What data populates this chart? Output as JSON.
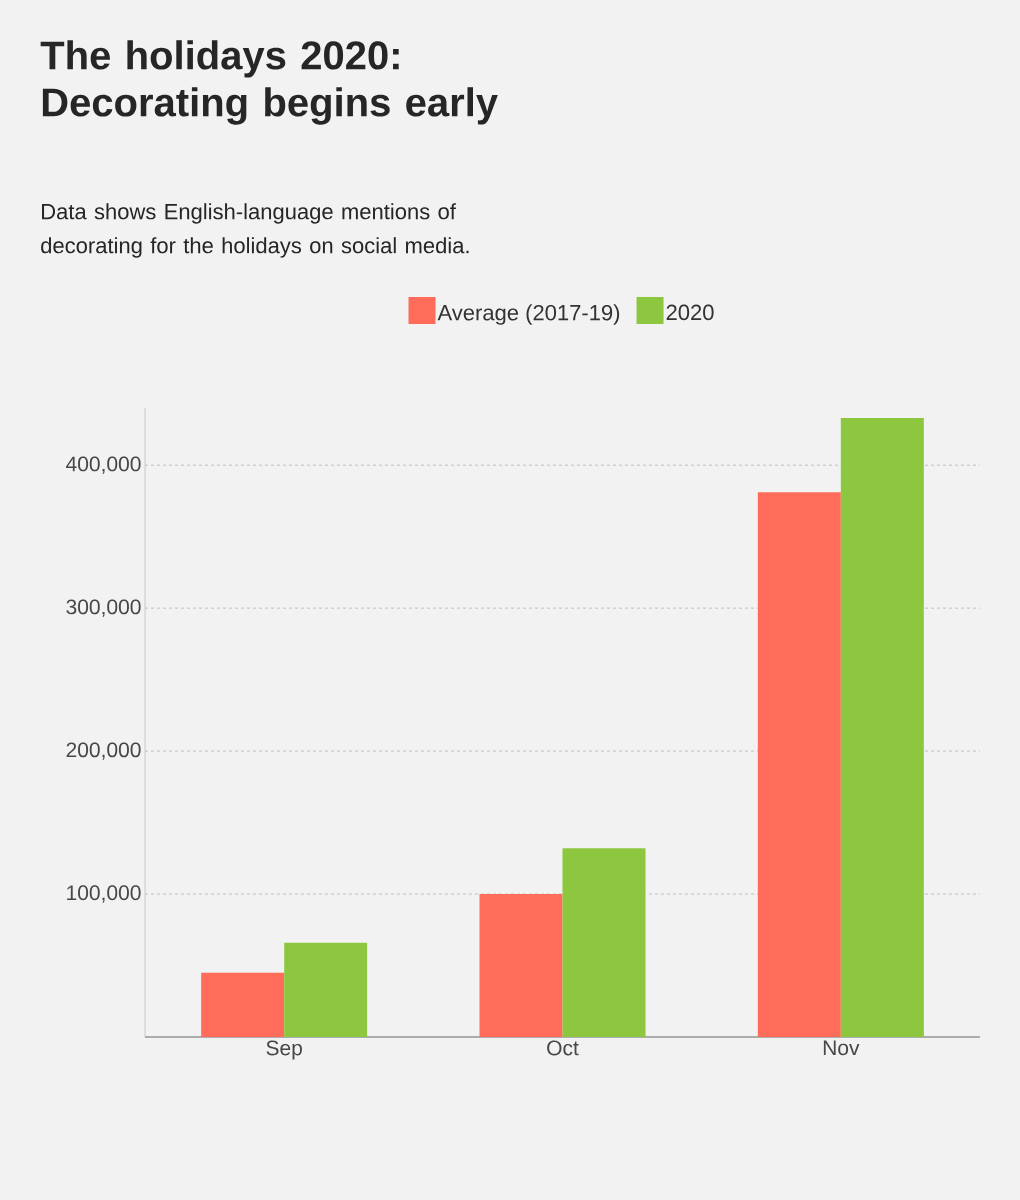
{
  "chart_data": {
    "type": "bar",
    "title": "The holidays 2020: Decorating begins early",
    "subtitle": "Data shows English-language mentions of decorating for the holidays on social media.",
    "categories": [
      "Sep",
      "Oct",
      "Nov"
    ],
    "series": [
      {
        "name": "Average (2017-19)",
        "color": "#ff6c59",
        "values": [
          45000,
          100000,
          381000
        ]
      },
      {
        "name": "2020",
        "color": "#8dc63f",
        "values": [
          66000,
          132000,
          433000
        ]
      }
    ],
    "ylim": [
      0,
      440000
    ],
    "yticks": [
      {
        "value": 100000,
        "label": "100,000"
      },
      {
        "value": 200000,
        "label": "200,000"
      },
      {
        "value": 300000,
        "label": "300,000"
      },
      {
        "value": 400000,
        "label": "400,000"
      }
    ],
    "grid": "y",
    "legend": "top"
  }
}
